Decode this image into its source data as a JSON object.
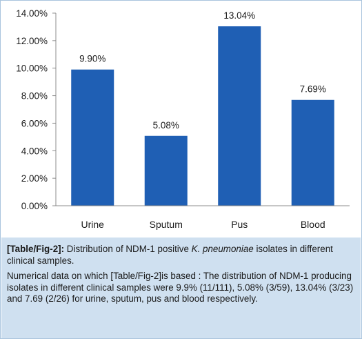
{
  "chart_data": {
    "type": "bar",
    "categories": [
      "Urine",
      "Sputum",
      "Pus",
      "Blood"
    ],
    "values": [
      9.9,
      5.08,
      13.04,
      7.69
    ],
    "data_labels": [
      "9.90%",
      "5.08%",
      "13.04%",
      "7.69%"
    ],
    "yticks": [
      "0.00%",
      "2.00%",
      "4.00%",
      "6.00%",
      "8.00%",
      "10.00%",
      "12.00%",
      "14.00%"
    ],
    "ylim": [
      0,
      14
    ],
    "grid": false,
    "legend": "none",
    "bar_color": "#1f5fb4"
  },
  "caption": {
    "fig_ref": "[Table/Fig-2]:",
    "title_pre": " Distribution of NDM-1 positive ",
    "organism": "K. pneumoniae",
    "title_post": " isolates in different clinical samples.",
    "note": "Numerical data on which [Table/Fig-2]is based : The distribution of NDM-1 producing isolates in different clinical samples were 9.9% (11/111), 5.08% (3/59), 13.04% (3/23) and 7.69 (2/26) for urine, sputum, pus and blood respectively."
  },
  "colors": {
    "caption_bg": "#cfe0f0",
    "border": "#a9c4dd",
    "text": "#1a1a1a"
  }
}
